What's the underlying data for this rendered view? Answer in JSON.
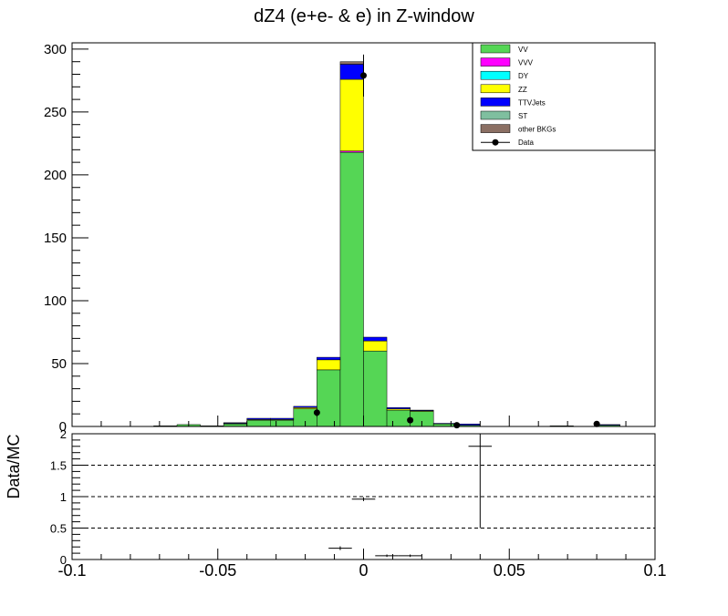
{
  "chart_data": [
    {
      "type": "bar",
      "stacked": true,
      "title": "dZ4 (e+e- & e) in Z-window",
      "xlim": [
        -0.1,
        0.1
      ],
      "ylim": [
        0,
        305
      ],
      "x_ticks": [
        "-0.1",
        "-0.05",
        "0",
        "0.05",
        "0.1"
      ],
      "y_ticks": [
        "0",
        "50",
        "100",
        "150",
        "200",
        "250",
        "300"
      ],
      "bin_width": 0.008,
      "bin_centers": [
        -0.068,
        -0.06,
        -0.052,
        -0.044,
        -0.036,
        -0.028,
        -0.02,
        -0.012,
        -0.004,
        0.004,
        0.012,
        0.02,
        0.028,
        0.036,
        0.044,
        0.052,
        0.06,
        0.068,
        0.076,
        0.084
      ],
      "series": [
        {
          "name": "VV",
          "color": "#55d655",
          "values": [
            0.5,
            1.5,
            0.5,
            2,
            5,
            5,
            14,
            45,
            218,
            60,
            13,
            12,
            2,
            1,
            0,
            0,
            0,
            0.5,
            0,
            1
          ]
        },
        {
          "name": "VVV",
          "color": "#ff00ff",
          "values": [
            0,
            0,
            0,
            0,
            0,
            0,
            0,
            0,
            1,
            0,
            0,
            0,
            0,
            0,
            0,
            0,
            0,
            0,
            0,
            0
          ]
        },
        {
          "name": "DY",
          "color": "#00ffff",
          "values": [
            0,
            0,
            0,
            0,
            0,
            0,
            0,
            0,
            0,
            0,
            0,
            0,
            0,
            0,
            0,
            0,
            0,
            0,
            0,
            0
          ]
        },
        {
          "name": "ZZ",
          "color": "#ffff00",
          "values": [
            0,
            0,
            0,
            0.5,
            0.5,
            0.5,
            1,
            8,
            57,
            8,
            1,
            0.5,
            0,
            0,
            0,
            0,
            0,
            0,
            0,
            0
          ]
        },
        {
          "name": "TTVJets",
          "color": "#0000ff",
          "values": [
            0,
            0,
            0,
            0.5,
            1,
            1,
            1,
            2,
            12,
            3,
            1,
            0.5,
            0.5,
            1,
            0,
            0,
            0,
            0,
            0,
            0.5
          ]
        },
        {
          "name": "ST",
          "color": "#7fbf9f",
          "values": [
            0,
            0,
            0,
            0,
            0,
            0,
            0,
            0,
            0,
            0,
            0,
            0,
            0,
            0,
            0,
            0,
            0,
            0,
            0,
            0
          ]
        },
        {
          "name": "other BKGs",
          "color": "#8b6f63",
          "values": [
            0,
            0,
            0,
            0,
            0,
            0,
            0,
            0,
            2,
            0,
            0,
            0,
            0,
            0,
            0,
            0,
            0,
            0,
            0,
            0
          ]
        }
      ],
      "data": {
        "name": "Data",
        "points": [
          {
            "x": -0.016,
            "y": 11,
            "err": 3.3
          },
          {
            "x": 0,
            "y": 279,
            "err": 16.7
          },
          {
            "x": 0.016,
            "y": 5,
            "err": 2.2
          },
          {
            "x": 0.032,
            "y": 1,
            "err": 1
          },
          {
            "x": 0.08,
            "y": 2,
            "err": 1.4
          }
        ]
      },
      "legend_position": "top-right"
    },
    {
      "type": "scatter",
      "ylabel": "Data/MC",
      "xlim": [
        -0.1,
        0.1
      ],
      "ylim": [
        0,
        2
      ],
      "x_ticks": [
        "-0.1",
        "-0.05",
        "0",
        "0.05",
        "0.1"
      ],
      "y_ticks": [
        "0",
        "0.5",
        "1",
        "1.5",
        "2"
      ],
      "dashed_lines": [
        0.5,
        1,
        1.5
      ],
      "points": [
        {
          "x": -0.008,
          "y": 0.18,
          "xerr": 0.004,
          "yerr": 0.03
        },
        {
          "x": 0,
          "y": 0.96,
          "xerr": 0.004,
          "yerr": 0.03
        },
        {
          "x": 0.008,
          "y": 0.06,
          "xerr": 0.004,
          "yerr": 0.02
        },
        {
          "x": 0.016,
          "y": 0.06,
          "xerr": 0.004,
          "yerr": 0.02
        },
        {
          "x": 0.04,
          "y": 1.8,
          "xerr": 0.004,
          "yerr": 1.3
        }
      ]
    }
  ]
}
